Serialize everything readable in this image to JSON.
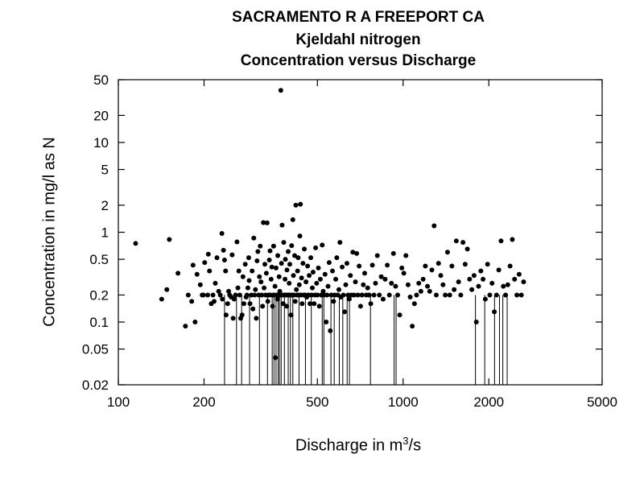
{
  "title": {
    "line1": "SACRAMENTO R A FREEPORT CA",
    "line2": "Kjeldahl nitrogen",
    "line3": "Concentration versus Discharge"
  },
  "axes": {
    "xlabel_pre": "Discharge in m",
    "xlabel_sup": "3",
    "xlabel_post": "/s",
    "ylabel": "Concentration in mg/l as N"
  },
  "chart_data": {
    "type": "scatter",
    "title": "SACRAMENTO R A FREEPORT CA / Kjeldahl nitrogen / Concentration versus Discharge",
    "xlabel": "Discharge in m3/s",
    "ylabel": "Concentration in mg/l as N",
    "x_scale": "log",
    "y_scale": "log",
    "xlim": [
      100,
      5000
    ],
    "ylim": [
      0.02,
      50
    ],
    "x_ticks": [
      100,
      200,
      500,
      1000,
      2000,
      5000
    ],
    "y_ticks": [
      0.02,
      0.05,
      0.1,
      0.2,
      0.5,
      1,
      2,
      5,
      10,
      20,
      50
    ],
    "grid": false,
    "points": [
      [
        115,
        0.75
      ],
      [
        142,
        0.18
      ],
      [
        148,
        0.23
      ],
      [
        151,
        0.83
      ],
      [
        162,
        0.35
      ],
      [
        172,
        0.09
      ],
      [
        176,
        0.2
      ],
      [
        181,
        0.17
      ],
      [
        183,
        0.43
      ],
      [
        186,
        0.1
      ],
      [
        189,
        0.34
      ],
      [
        194,
        0.26
      ],
      [
        197,
        0.2
      ],
      [
        199,
        0.2
      ],
      [
        201,
        0.46
      ],
      [
        206,
        0.2
      ],
      [
        207,
        0.57
      ],
      [
        209,
        0.37
      ],
      [
        212,
        0.16
      ],
      [
        215,
        0.2
      ],
      [
        217,
        0.17
      ],
      [
        219,
        0.27
      ],
      [
        222,
        0.52
      ],
      [
        225,
        0.22
      ],
      [
        228,
        0.2
      ],
      [
        231,
        0.97
      ],
      [
        232,
        0.18
      ],
      [
        234,
        0.63
      ],
      [
        236,
        0.49
      ],
      [
        238,
        0.37
      ],
      [
        239,
        0.12
      ],
      [
        242,
        0.16
      ],
      [
        244,
        0.22
      ],
      [
        246,
        0.2
      ],
      [
        249,
        0.19
      ],
      [
        251,
        0.56
      ],
      [
        253,
        0.11
      ],
      [
        255,
        0.18
      ],
      [
        258,
        0.2
      ],
      [
        261,
        0.78
      ],
      [
        263,
        0.24
      ],
      [
        265,
        0.37
      ],
      [
        267,
        0.2
      ],
      [
        269,
        0.11
      ],
      [
        272,
        0.12
      ],
      [
        274,
        0.32
      ],
      [
        276,
        0.16
      ],
      [
        279,
        0.44
      ],
      [
        281,
        0.19
      ],
      [
        283,
        0.2
      ],
      [
        285,
        0.24
      ],
      [
        287,
        0.52
      ],
      [
        288,
        0.29
      ],
      [
        290,
        0.16
      ],
      [
        293,
        0.2
      ],
      [
        295,
        0.37
      ],
      [
        297,
        0.14
      ],
      [
        299,
        0.86
      ],
      [
        301,
        0.2
      ],
      [
        303,
        0.23
      ],
      [
        305,
        0.11
      ],
      [
        307,
        0.48
      ],
      [
        309,
        0.61
      ],
      [
        311,
        0.2
      ],
      [
        313,
        0.32
      ],
      [
        315,
        0.7
      ],
      [
        317,
        0.28
      ],
      [
        319,
        0.2
      ],
      [
        321,
        0.15
      ],
      [
        323,
        1.28
      ],
      [
        325,
        0.24
      ],
      [
        327,
        0.44
      ],
      [
        329,
        0.2
      ],
      [
        331,
        0.35
      ],
      [
        333,
        1.27
      ],
      [
        335,
        0.17
      ],
      [
        337,
        0.2
      ],
      [
        339,
        0.49
      ],
      [
        341,
        0.62
      ],
      [
        342,
        0.2
      ],
      [
        344,
        0.3
      ],
      [
        346,
        0.41
      ],
      [
        348,
        0.15
      ],
      [
        350,
        0.2
      ],
      [
        351,
        0.7
      ],
      [
        353,
        0.2
      ],
      [
        355,
        0.25
      ],
      [
        356,
        0.04
      ],
      [
        358,
        0.4
      ],
      [
        360,
        0.2
      ],
      [
        362,
        0.18
      ],
      [
        363,
        0.55
      ],
      [
        365,
        0.2
      ],
      [
        367,
        0.32
      ],
      [
        369,
        0.22
      ],
      [
        370,
        0.2
      ],
      [
        372,
        38
      ],
      [
        374,
        0.45
      ],
      [
        376,
        1.2
      ],
      [
        377,
        0.2
      ],
      [
        379,
        0.16
      ],
      [
        381,
        0.77
      ],
      [
        383,
        0.2
      ],
      [
        385,
        0.3
      ],
      [
        386,
        0.5
      ],
      [
        388,
        0.2
      ],
      [
        390,
        0.15
      ],
      [
        391,
        0.38
      ],
      [
        393,
        0.2
      ],
      [
        395,
        0.61
      ],
      [
        397,
        0.2
      ],
      [
        398,
        0.27
      ],
      [
        400,
        0.44
      ],
      [
        402,
        0.2
      ],
      [
        404,
        0.12
      ],
      [
        406,
        0.71
      ],
      [
        408,
        0.2
      ],
      [
        410,
        1.38
      ],
      [
        412,
        0.33
      ],
      [
        414,
        0.2
      ],
      [
        416,
        0.55
      ],
      [
        418,
        0.17
      ],
      [
        420,
        2.0
      ],
      [
        422,
        0.23
      ],
      [
        424,
        0.2
      ],
      [
        426,
        0.37
      ],
      [
        428,
        0.52
      ],
      [
        430,
        0.2
      ],
      [
        432,
        0.26
      ],
      [
        434,
        0.91
      ],
      [
        436,
        2.05
      ],
      [
        438,
        0.2
      ],
      [
        440,
        0.31
      ],
      [
        442,
        0.16
      ],
      [
        445,
        0.45
      ],
      [
        447,
        0.2
      ],
      [
        450,
        0.65
      ],
      [
        453,
        0.2
      ],
      [
        456,
        0.28
      ],
      [
        459,
        0.19
      ],
      [
        462,
        0.42
      ],
      [
        465,
        0.2
      ],
      [
        468,
        0.33
      ],
      [
        471,
        0.16
      ],
      [
        474,
        0.52
      ],
      [
        477,
        0.2
      ],
      [
        480,
        0.24
      ],
      [
        483,
        0.36
      ],
      [
        487,
        0.16
      ],
      [
        490,
        0.2
      ],
      [
        493,
        0.67
      ],
      [
        497,
        0.27
      ],
      [
        500,
        0.2
      ],
      [
        504,
        0.4
      ],
      [
        508,
        0.15
      ],
      [
        512,
        0.3
      ],
      [
        516,
        0.2
      ],
      [
        520,
        0.72
      ],
      [
        524,
        0.22
      ],
      [
        528,
        0.2
      ],
      [
        532,
        0.34
      ],
      [
        537,
        0.1
      ],
      [
        541,
        0.2
      ],
      [
        545,
        0.25
      ],
      [
        550,
        0.46
      ],
      [
        555,
        0.08
      ],
      [
        560,
        0.2
      ],
      [
        565,
        0.37
      ],
      [
        570,
        0.17
      ],
      [
        575,
        0.2
      ],
      [
        580,
        0.3
      ],
      [
        585,
        0.52
      ],
      [
        590,
        0.2
      ],
      [
        595,
        0.23
      ],
      [
        600,
        0.77
      ],
      [
        605,
        0.19
      ],
      [
        611,
        0.41
      ],
      [
        617,
        0.2
      ],
      [
        623,
        0.13
      ],
      [
        629,
        0.26
      ],
      [
        635,
        0.45
      ],
      [
        641,
        0.2
      ],
      [
        647,
        0.18
      ],
      [
        653,
        0.33
      ],
      [
        659,
        0.2
      ],
      [
        666,
        0.6
      ],
      [
        673,
        0.2
      ],
      [
        680,
        0.28
      ],
      [
        687,
        0.58
      ],
      [
        694,
        0.2
      ],
      [
        701,
        0.42
      ],
      [
        709,
        0.15
      ],
      [
        717,
        0.2
      ],
      [
        725,
        0.26
      ],
      [
        733,
        0.35
      ],
      [
        742,
        0.2
      ],
      [
        751,
        0.24
      ],
      [
        760,
        0.2
      ],
      [
        770,
        0.16
      ],
      [
        780,
        0.43
      ],
      [
        790,
        0.2
      ],
      [
        800,
        0.27
      ],
      [
        812,
        0.55
      ],
      [
        825,
        0.2
      ],
      [
        838,
        0.32
      ],
      [
        851,
        0.18
      ],
      [
        865,
        0.3
      ],
      [
        880,
        0.43
      ],
      [
        895,
        0.2
      ],
      [
        910,
        0.27
      ],
      [
        925,
        0.58
      ],
      [
        941,
        0.25
      ],
      [
        957,
        0.2
      ],
      [
        973,
        0.12
      ],
      [
        990,
        0.4
      ],
      [
        1006,
        0.35
      ],
      [
        1023,
        0.55
      ],
      [
        1041,
        0.26
      ],
      [
        1059,
        0.19
      ],
      [
        1077,
        0.09
      ],
      [
        1096,
        0.16
      ],
      [
        1115,
        0.2
      ],
      [
        1135,
        0.27
      ],
      [
        1155,
        0.22
      ],
      [
        1176,
        0.3
      ],
      [
        1197,
        0.42
      ],
      [
        1218,
        0.25
      ],
      [
        1240,
        0.22
      ],
      [
        1262,
        0.38
      ],
      [
        1285,
        1.18
      ],
      [
        1308,
        0.2
      ],
      [
        1332,
        0.45
      ],
      [
        1356,
        0.33
      ],
      [
        1381,
        0.26
      ],
      [
        1406,
        0.2
      ],
      [
        1432,
        0.6
      ],
      [
        1458,
        0.2
      ],
      [
        1484,
        0.42
      ],
      [
        1511,
        0.23
      ],
      [
        1538,
        0.8
      ],
      [
        1566,
        0.28
      ],
      [
        1594,
        0.2
      ],
      [
        1623,
        0.77
      ],
      [
        1652,
        0.44
      ],
      [
        1682,
        0.65
      ],
      [
        1712,
        0.3
      ],
      [
        1743,
        0.23
      ],
      [
        1775,
        0.33
      ],
      [
        1808,
        0.1
      ],
      [
        1841,
        0.25
      ],
      [
        1875,
        0.37
      ],
      [
        1909,
        0.3
      ],
      [
        1944,
        0.18
      ],
      [
        1980,
        0.44
      ],
      [
        2016,
        0.2
      ],
      [
        2053,
        0.27
      ],
      [
        2091,
        0.13
      ],
      [
        2129,
        0.2
      ],
      [
        2168,
        0.38
      ],
      [
        2208,
        0.8
      ],
      [
        2249,
        0.25
      ],
      [
        2290,
        0.2
      ],
      [
        2332,
        0.26
      ],
      [
        2375,
        0.42
      ],
      [
        2419,
        0.83
      ],
      [
        2463,
        0.3
      ],
      [
        2509,
        0.2
      ],
      [
        2555,
        0.34
      ],
      [
        2602,
        0.2
      ],
      [
        2650,
        0.28
      ]
    ],
    "censored_points": [
      [
        236,
        0.2
      ],
      [
        260,
        0.2
      ],
      [
        271,
        0.2
      ],
      [
        289,
        0.2
      ],
      [
        313,
        0.2
      ],
      [
        334,
        0.2
      ],
      [
        347,
        0.2
      ],
      [
        352,
        0.2
      ],
      [
        358,
        0.2
      ],
      [
        364,
        0.2
      ],
      [
        368,
        0.2
      ],
      [
        373,
        0.2
      ],
      [
        383,
        0.2
      ],
      [
        395,
        0.2
      ],
      [
        402,
        0.2
      ],
      [
        410,
        0.2
      ],
      [
        431,
        0.2
      ],
      [
        454,
        0.2
      ],
      [
        476,
        0.2
      ],
      [
        520,
        0.2
      ],
      [
        527,
        0.2
      ],
      [
        558,
        0.2
      ],
      [
        573,
        0.2
      ],
      [
        597,
        0.2
      ],
      [
        614,
        0.2
      ],
      [
        636,
        0.2
      ],
      [
        648,
        0.2
      ],
      [
        768,
        0.2
      ],
      [
        930,
        0.2
      ],
      [
        945,
        0.2
      ],
      [
        1795,
        0.2
      ],
      [
        1935,
        0.2
      ],
      [
        2095,
        0.2
      ],
      [
        2180,
        0.2
      ],
      [
        2240,
        0.2
      ],
      [
        2320,
        0.2
      ]
    ]
  }
}
